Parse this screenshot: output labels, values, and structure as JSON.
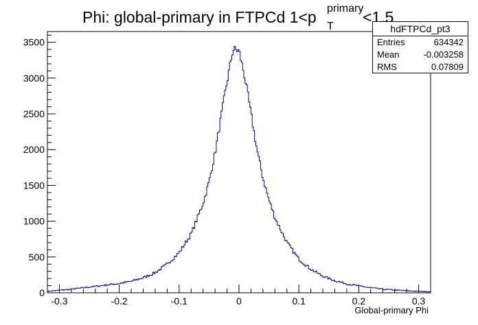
{
  "chart_data": {
    "type": "histogram",
    "title_main": "Phi: global-primary in FTPCd 1<p",
    "title_sup": "primary",
    "title_sub": "T",
    "title_tail": "<1.5",
    "xlabel": "Global-primary Phi",
    "ylabel": "",
    "xlim": [
      -0.32,
      0.32
    ],
    "ylim": [
      0,
      3650
    ],
    "x_ticks": [
      -0.3,
      -0.2,
      -0.1,
      0,
      0.1,
      0.2,
      0.3
    ],
    "x_tick_labels": [
      "-0.3",
      "-0.2",
      "-0.1",
      "0",
      "0.1",
      "0.2",
      "0.3"
    ],
    "y_ticks": [
      0,
      500,
      1000,
      1500,
      2000,
      2500,
      3000,
      3500
    ],
    "y_tick_labels": [
      "0",
      "500",
      "1000",
      "1500",
      "2000",
      "2500",
      "3000",
      "3500"
    ],
    "line_color": "#000080",
    "series": [
      {
        "x": [
          -0.32,
          -0.3,
          -0.28,
          -0.26,
          -0.24,
          -0.22,
          -0.2,
          -0.18,
          -0.16,
          -0.14,
          -0.12,
          -0.1,
          -0.08,
          -0.06,
          -0.05,
          -0.04,
          -0.03,
          -0.02,
          -0.01,
          0,
          0.01,
          0.02,
          0.03,
          0.04,
          0.05,
          0.06,
          0.08,
          0.1,
          0.12,
          0.14,
          0.16,
          0.18,
          0.2,
          0.22,
          0.24,
          0.26,
          0.28,
          0.3,
          0.32
        ],
        "y": [
          20,
          35,
          50,
          70,
          90,
          110,
          130,
          160,
          210,
          280,
          400,
          560,
          820,
          1250,
          1550,
          1950,
          2450,
          2950,
          3400,
          3380,
          3000,
          2500,
          2000,
          1600,
          1300,
          1050,
          700,
          470,
          330,
          230,
          170,
          125,
          95,
          70,
          50,
          38,
          28,
          20,
          15
        ]
      }
    ]
  },
  "stats": {
    "name": "hdFTPCd_pt3",
    "entries_label": "Entries",
    "entries_value": "634342",
    "mean_label": "Mean",
    "mean_value": "-0.003258",
    "rms_label": "RMS",
    "rms_value": "0.07809"
  }
}
